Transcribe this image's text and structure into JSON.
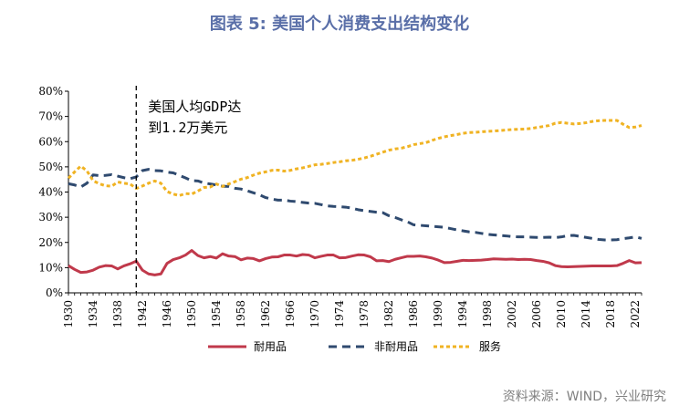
{
  "header": {
    "title": "图表 5:  美国个人消费支出结构变化"
  },
  "footer": {
    "source": "资料来源：WIND，兴业研究"
  },
  "chart_data": {
    "type": "line",
    "title": "图表 5:  美国个人消费支出结构变化",
    "x_range": [
      1930,
      2023
    ],
    "ylim": [
      0,
      80
    ],
    "y_ticks": [
      "0%",
      "10%",
      "20%",
      "30%",
      "40%",
      "50%",
      "60%",
      "70%",
      "80%"
    ],
    "x_ticks": [
      "1930",
      "1934",
      "1938",
      "1942",
      "1946",
      "1950",
      "1954",
      "1958",
      "1962",
      "1966",
      "1970",
      "1974",
      "1978",
      "1982",
      "1986",
      "1990",
      "1994",
      "1998",
      "2002",
      "2006",
      "2010",
      "2014",
      "2018",
      "2022"
    ],
    "grid": false,
    "legend_position": "bottom",
    "annotation": {
      "x": 1941,
      "lines": [
        "美国人均GDP达",
        "到1.2万美元"
      ]
    },
    "colors": {
      "durable": "#c0394b",
      "nondurable": "#2f4a6f",
      "services": "#f0b323"
    },
    "series": [
      {
        "name": "耐用品",
        "style": "solid",
        "x": [
          1930,
          1931,
          1932,
          1933,
          1934,
          1935,
          1936,
          1937,
          1938,
          1939,
          1940,
          1941,
          1942,
          1943,
          1944,
          1945,
          1946,
          1947,
          1948,
          1949,
          1950,
          1951,
          1952,
          1953,
          1954,
          1955,
          1956,
          1957,
          1958,
          1959,
          1960,
          1961,
          1962,
          1963,
          1964,
          1965,
          1966,
          1967,
          1968,
          1969,
          1970,
          1971,
          1972,
          1973,
          1974,
          1975,
          1976,
          1977,
          1978,
          1979,
          1980,
          1981,
          1982,
          1983,
          1984,
          1985,
          1986,
          1987,
          1988,
          1989,
          1990,
          1991,
          1992,
          1993,
          1994,
          1995,
          1996,
          1997,
          1998,
          1999,
          2000,
          2001,
          2002,
          2003,
          2004,
          2005,
          2006,
          2007,
          2008,
          2009,
          2010,
          2011,
          2012,
          2013,
          2014,
          2015,
          2016,
          2017,
          2018,
          2019,
          2020,
          2021,
          2022,
          2023
        ],
        "values": [
          10.8,
          9.3,
          8.1,
          8.3,
          9.0,
          10.2,
          10.8,
          10.7,
          9.5,
          10.7,
          11.5,
          12.6,
          9.0,
          7.5,
          7.1,
          7.5,
          11.7,
          13.2,
          13.9,
          15.0,
          16.8,
          14.8,
          13.9,
          14.4,
          13.8,
          15.5,
          14.6,
          14.4,
          13.1,
          13.8,
          13.6,
          12.7,
          13.6,
          14.2,
          14.3,
          15.0,
          15.0,
          14.6,
          15.2,
          15.0,
          13.9,
          14.5,
          15.0,
          15.0,
          13.9,
          14.0,
          14.6,
          15.1,
          15.0,
          14.3,
          12.7,
          12.8,
          12.4,
          13.3,
          13.9,
          14.5,
          14.5,
          14.6,
          14.3,
          13.8,
          13.0,
          12.0,
          12.1,
          12.5,
          12.9,
          12.8,
          12.9,
          13.0,
          13.2,
          13.5,
          13.4,
          13.3,
          13.4,
          13.2,
          13.3,
          13.2,
          12.8,
          12.5,
          11.9,
          10.8,
          10.4,
          10.3,
          10.4,
          10.5,
          10.6,
          10.7,
          10.7,
          10.7,
          10.7,
          10.8,
          11.7,
          12.8,
          11.9,
          12.0
        ]
      },
      {
        "name": "非耐用品",
        "style": "dashed",
        "x": [
          1930,
          1931,
          1932,
          1933,
          1934,
          1935,
          1936,
          1937,
          1938,
          1939,
          1940,
          1941,
          1942,
          1943,
          1944,
          1945,
          1946,
          1947,
          1948,
          1949,
          1950,
          1951,
          1952,
          1953,
          1954,
          1955,
          1956,
          1957,
          1958,
          1959,
          1960,
          1961,
          1962,
          1963,
          1964,
          1965,
          1966,
          1967,
          1968,
          1969,
          1970,
          1971,
          1972,
          1973,
          1974,
          1975,
          1976,
          1977,
          1978,
          1979,
          1980,
          1981,
          1982,
          1983,
          1984,
          1985,
          1986,
          1987,
          1988,
          1989,
          1990,
          1991,
          1992,
          1993,
          1994,
          1995,
          1996,
          1997,
          1998,
          1999,
          2000,
          2001,
          2002,
          2003,
          2004,
          2005,
          2006,
          2007,
          2008,
          2009,
          2010,
          2011,
          2012,
          2013,
          2014,
          2015,
          2016,
          2017,
          2018,
          2019,
          2020,
          2021,
          2022,
          2023
        ],
        "values": [
          43.3,
          42.8,
          42.0,
          43.5,
          46.8,
          46.5,
          46.6,
          46.9,
          46.3,
          45.7,
          45.3,
          46.0,
          48.5,
          49.0,
          48.5,
          48.4,
          47.9,
          47.6,
          46.6,
          45.6,
          44.5,
          44.4,
          43.6,
          43.2,
          42.8,
          42.3,
          42.2,
          41.5,
          41.2,
          40.5,
          39.7,
          38.9,
          37.8,
          37.2,
          36.8,
          36.8,
          36.4,
          36.2,
          35.9,
          35.6,
          35.5,
          35.0,
          34.5,
          34.3,
          34.2,
          34.0,
          33.6,
          33.0,
          32.6,
          32.3,
          32.0,
          31.8,
          30.6,
          29.9,
          29.0,
          28.2,
          27.0,
          26.8,
          26.6,
          26.4,
          26.2,
          26.0,
          25.5,
          25.0,
          24.6,
          24.2,
          24.0,
          23.6,
          23.2,
          23.0,
          22.8,
          22.6,
          22.3,
          22.2,
          22.2,
          22.1,
          22.0,
          22.0,
          22.1,
          21.9,
          22.2,
          22.7,
          22.8,
          22.4,
          22.0,
          21.6,
          21.2,
          21.0,
          21.0,
          21.1,
          21.5,
          21.8,
          22.2,
          21.6
        ]
      },
      {
        "name": "服务",
        "style": "dotted",
        "x": [
          1930,
          1931,
          1932,
          1933,
          1934,
          1935,
          1936,
          1937,
          1938,
          1939,
          1940,
          1941,
          1942,
          1943,
          1944,
          1945,
          1946,
          1947,
          1948,
          1949,
          1950,
          1951,
          1952,
          1953,
          1954,
          1955,
          1956,
          1957,
          1958,
          1959,
          1960,
          1961,
          1962,
          1963,
          1964,
          1965,
          1966,
          1967,
          1968,
          1969,
          1970,
          1971,
          1972,
          1973,
          1974,
          1975,
          1976,
          1977,
          1978,
          1979,
          1980,
          1981,
          1982,
          1983,
          1984,
          1985,
          1986,
          1987,
          1988,
          1989,
          1990,
          1991,
          1992,
          1993,
          1994,
          1995,
          1996,
          1997,
          1998,
          1999,
          2000,
          2001,
          2002,
          2003,
          2004,
          2005,
          2006,
          2007,
          2008,
          2009,
          2010,
          2011,
          2012,
          2013,
          2014,
          2015,
          2016,
          2017,
          2018,
          2019,
          2020,
          2021,
          2022,
          2023
        ],
        "values": [
          45.5,
          48.0,
          50.3,
          48.4,
          44.5,
          43.3,
          42.5,
          42.3,
          44.0,
          43.5,
          43.2,
          41.4,
          42.4,
          43.5,
          44.4,
          43.5,
          40.2,
          39.2,
          38.6,
          39.4,
          39.2,
          40.4,
          41.8,
          42.0,
          43.2,
          42.2,
          43.2,
          44.1,
          45.1,
          45.7,
          46.7,
          47.5,
          48.0,
          48.6,
          48.7,
          48.3,
          48.6,
          49.2,
          49.6,
          50.2,
          50.8,
          51.0,
          51.3,
          51.7,
          52.0,
          52.4,
          52.6,
          53.0,
          53.5,
          54.2,
          55.0,
          55.8,
          56.6,
          57.1,
          57.4,
          58.0,
          58.8,
          59.2,
          59.6,
          60.5,
          61.3,
          61.9,
          62.4,
          62.8,
          63.3,
          63.6,
          63.7,
          63.9,
          64.1,
          64.2,
          64.4,
          64.6,
          64.8,
          64.9,
          65.0,
          65.2,
          65.6,
          66.0,
          66.4,
          67.3,
          67.6,
          67.3,
          67.0,
          67.2,
          67.5,
          68.0,
          68.3,
          68.4,
          68.4,
          68.4,
          66.9,
          65.6,
          65.8,
          66.4
        ]
      }
    ]
  }
}
